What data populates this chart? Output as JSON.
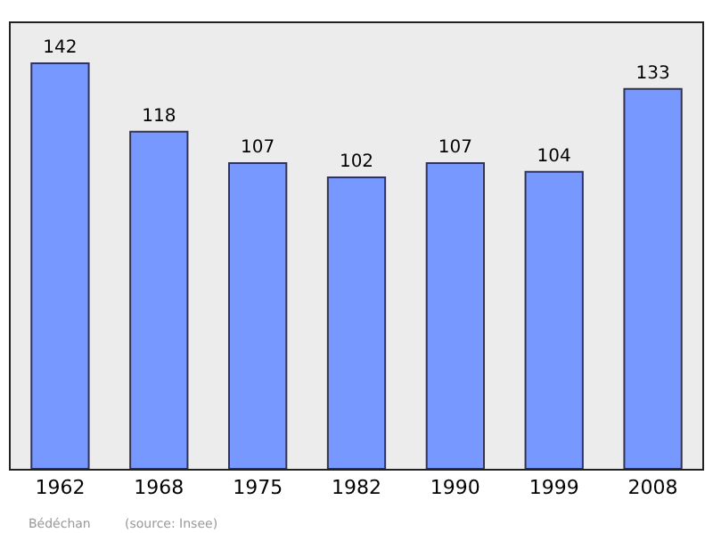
{
  "chart_data": {
    "type": "bar",
    "categories": [
      "1962",
      "1968",
      "1975",
      "1982",
      "1990",
      "1999",
      "2008"
    ],
    "values": [
      142,
      118,
      107,
      102,
      107,
      104,
      133
    ],
    "color": "#7799ff",
    "data_labels": true,
    "ylim": [
      0,
      156
    ],
    "tick_labels": "x",
    "grid": false,
    "annotations": [
      "Bédéchan",
      "(source: Insee)"
    ]
  }
}
